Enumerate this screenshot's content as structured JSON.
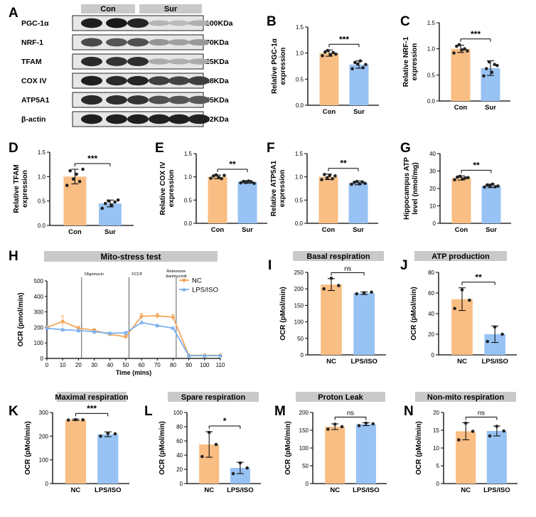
{
  "colors": {
    "con": "#f9be83",
    "sur": "#97c2f3",
    "nc_line": "#f3a85c",
    "lps_line": "#7db1ee",
    "header": "#c9c9c9",
    "blot_bg": "#e6e6e6"
  },
  "panel_a": {
    "letter": "A",
    "groups": [
      "Con",
      "Sur"
    ],
    "proteins": [
      "PGC-1α",
      "NRF-1",
      "TFAM",
      "COX IV",
      "ATP5A1",
      "β-actin"
    ],
    "sizes": [
      "100KDa",
      "70KDa",
      "25KDa",
      "18KDa",
      "55KDa",
      "42KDa"
    ],
    "band_intensity": [
      [
        0.95,
        0.98,
        0.92,
        0.25,
        0.22,
        0.28
      ],
      [
        0.75,
        0.7,
        0.72,
        0.4,
        0.35,
        0.38
      ],
      [
        0.9,
        0.85,
        0.88,
        0.3,
        0.28,
        0.3
      ],
      [
        0.95,
        0.9,
        0.92,
        0.8,
        0.78,
        0.8
      ],
      [
        0.9,
        0.88,
        0.85,
        0.72,
        0.7,
        0.68
      ],
      [
        0.95,
        0.95,
        0.95,
        0.94,
        0.95,
        0.94
      ]
    ]
  },
  "chart_data": [
    {
      "id": "B",
      "letter": "B",
      "type": "bar",
      "categories": [
        "Con",
        "Sur"
      ],
      "values": [
        1.0,
        0.78
      ],
      "errors": [
        0.06,
        0.07
      ],
      "points": [
        [
          0.95,
          1.02,
          1.05,
          0.97,
          1.01,
          0.98
        ],
        [
          0.7,
          0.82,
          0.79,
          0.85,
          0.72,
          0.78
        ]
      ],
      "ylabel": "Relative PGC-1α expression",
      "ylim": [
        0,
        1.5
      ],
      "yticks": [
        "0.0",
        "0.5",
        "1.0",
        "1.5"
      ],
      "sig": "***"
    },
    {
      "id": "C",
      "letter": "C",
      "type": "bar",
      "categories": [
        "Con",
        "Sur"
      ],
      "values": [
        1.0,
        0.63
      ],
      "errors": [
        0.07,
        0.14
      ],
      "points": [
        [
          0.92,
          1.05,
          1.08,
          0.98,
          1.0,
          0.96
        ],
        [
          0.48,
          0.62,
          0.75,
          0.55,
          0.7,
          0.68
        ]
      ],
      "ylabel": "Relative NRF-1 expression",
      "ylim": [
        0,
        1.5
      ],
      "yticks": [
        "0.0",
        "0.5",
        "1.0",
        "1.5"
      ],
      "sig": "***"
    },
    {
      "id": "D",
      "letter": "D",
      "type": "bar",
      "categories": [
        "Con",
        "Sur"
      ],
      "values": [
        1.0,
        0.45
      ],
      "errors": [
        0.15,
        0.07
      ],
      "points": [
        [
          0.82,
          1.12,
          0.95,
          1.05,
          0.9,
          1.15
        ],
        [
          0.35,
          0.45,
          0.5,
          0.42,
          0.48,
          0.52
        ]
      ],
      "ylabel": "Relative TFAM expression",
      "ylim": [
        0,
        1.5
      ],
      "yticks": [
        "0.0",
        "0.5",
        "1.0",
        "1.5"
      ],
      "sig": "***"
    },
    {
      "id": "E",
      "letter": "E",
      "type": "bar",
      "categories": [
        "Con",
        "Sur"
      ],
      "values": [
        1.0,
        0.89
      ],
      "errors": [
        0.04,
        0.03
      ],
      "points": [
        [
          0.97,
          1.02,
          1.04,
          0.99,
          0.96,
          1.03
        ],
        [
          0.87,
          0.9,
          0.88,
          0.91,
          0.89,
          0.86
        ]
      ],
      "ylabel": "Relative COX IV expression",
      "ylim": [
        0,
        1.5
      ],
      "yticks": [
        "0.0",
        "0.5",
        "1.0",
        "1.5"
      ],
      "sig": "**"
    },
    {
      "id": "F",
      "letter": "F",
      "type": "bar",
      "categories": [
        "Con",
        "Sur"
      ],
      "values": [
        1.0,
        0.87
      ],
      "errors": [
        0.06,
        0.04
      ],
      "points": [
        [
          0.94,
          1.05,
          0.98,
          1.03,
          0.96,
          1.02
        ],
        [
          0.84,
          0.88,
          0.9,
          0.85,
          0.89,
          0.86
        ]
      ],
      "ylabel": "Relative ATP5A1 expression",
      "ylim": [
        0,
        1.5
      ],
      "yticks": [
        "0.0",
        "0.5",
        "1.0",
        "1.5"
      ],
      "sig": "**"
    },
    {
      "id": "G",
      "letter": "G",
      "type": "bar",
      "categories": [
        "Con",
        "Sur"
      ],
      "values": [
        26,
        21.5
      ],
      "errors": [
        1.2,
        1.0
      ],
      "points": [
        [
          25,
          26.5,
          27,
          25.5,
          26,
          26.2
        ],
        [
          20.8,
          22,
          21.5,
          22.5,
          21,
          21.4
        ]
      ],
      "ylabel": "Hippocampus ATP level (nmol/mg)",
      "ylim": [
        0,
        40
      ],
      "yticks": [
        "0",
        "10",
        "20",
        "30",
        "40"
      ],
      "sig": "**"
    },
    {
      "id": "H",
      "letter": "H",
      "type": "line",
      "title": "Mito-stress test",
      "xlabel": "Time (mins)",
      "ylabel": "OCR (pmol/min)",
      "xlim": [
        0,
        110
      ],
      "ylim": [
        0,
        500
      ],
      "xticks": [
        "0",
        "10",
        "20",
        "30",
        "40",
        "50",
        "60",
        "70",
        "80",
        "90",
        "100",
        "110"
      ],
      "yticks": [
        "0",
        "100",
        "200",
        "300",
        "400",
        "500"
      ],
      "x": [
        0,
        10,
        20,
        30,
        40,
        50,
        60,
        70,
        80,
        90,
        100,
        110
      ],
      "series": [
        {
          "name": "NC",
          "values": [
            200,
            238,
            195,
            182,
            155,
            140,
            272,
            275,
            266,
            20,
            20,
            20
          ],
          "errors": [
            10,
            35,
            12,
            10,
            8,
            8,
            18,
            15,
            16,
            3,
            3,
            3
          ]
        },
        {
          "name": "LPS/ISO",
          "values": [
            195,
            185,
            180,
            172,
            162,
            165,
            232,
            212,
            195,
            18,
            18,
            18
          ],
          "errors": [
            8,
            8,
            8,
            8,
            8,
            8,
            8,
            8,
            8,
            3,
            3,
            3
          ]
        }
      ],
      "annotations": [
        {
          "label": "Oligomycin",
          "x": 22
        },
        {
          "label": "FCCP",
          "x": 52
        },
        {
          "label": "Reteonone &antmycinA",
          "x": 82
        }
      ]
    },
    {
      "id": "I",
      "letter": "I",
      "type": "bar",
      "title": "Basal respiration",
      "categories": [
        "NC",
        "LPS/ISO"
      ],
      "values": [
        213,
        187
      ],
      "errors": [
        18,
        4
      ],
      "points": [
        [
          200,
          232,
          210
        ],
        [
          185,
          188,
          190
        ]
      ],
      "ylabel": "OCR (pMol/min)",
      "ylim": [
        0,
        250
      ],
      "yticks": [
        "0",
        "50",
        "100",
        "150",
        "200",
        "250"
      ],
      "sig": "ns"
    },
    {
      "id": "J",
      "letter": "J",
      "type": "bar",
      "title": "ATP production",
      "categories": [
        "NC",
        "LPS/ISO"
      ],
      "values": [
        54,
        20
      ],
      "errors": [
        11,
        8
      ],
      "points": [
        [
          45,
          63,
          53
        ],
        [
          13,
          27,
          20
        ]
      ],
      "ylabel": "OCR (pMol/min)",
      "ylim": [
        0,
        80
      ],
      "yticks": [
        "0",
        "20",
        "40",
        "60",
        "80"
      ],
      "sig": "**"
    },
    {
      "id": "K",
      "letter": "K",
      "type": "bar",
      "title": "Maximal respiration",
      "categories": [
        "NC",
        "LPS/ISO"
      ],
      "values": [
        269,
        208
      ],
      "errors": [
        3,
        10
      ],
      "points": [
        [
          268,
          270,
          269
        ],
        [
          200,
          212,
          210
        ]
      ],
      "ylabel": "OCR (pMol/min)",
      "ylim": [
        0,
        300
      ],
      "yticks": [
        "0",
        "100",
        "200",
        "300"
      ],
      "sig": "***"
    },
    {
      "id": "L",
      "letter": "L",
      "type": "bar",
      "title": "Spare respiration",
      "categories": [
        "NC",
        "LPS/ISO"
      ],
      "values": [
        55,
        22
      ],
      "errors": [
        18,
        8
      ],
      "points": [
        [
          38,
          72,
          55
        ],
        [
          14,
          29,
          22
        ]
      ],
      "ylabel": "OCR (pMol/min)",
      "ylim": [
        0,
        100
      ],
      "yticks": [
        "0",
        "20",
        "40",
        "60",
        "80",
        "100"
      ],
      "sig": "*"
    },
    {
      "id": "M",
      "letter": "M",
      "type": "bar",
      "title": "Proton Leak",
      "categories": [
        "NC",
        "LPS/ISO"
      ],
      "values": [
        160,
        167
      ],
      "errors": [
        8,
        4
      ],
      "points": [
        [
          153,
          167,
          160
        ],
        [
          163,
          170,
          168
        ]
      ],
      "ylabel": "OCR (pMol/min)",
      "ylim": [
        0,
        200
      ],
      "yticks": [
        "0",
        "50",
        "100",
        "150",
        "200"
      ],
      "sig": "ns"
    },
    {
      "id": "N",
      "letter": "N",
      "type": "bar",
      "title": "Non-mito respiration",
      "categories": [
        "NC",
        "LPS/ISO"
      ],
      "values": [
        14.7,
        14.8
      ],
      "errors": [
        2.4,
        1.4
      ],
      "points": [
        [
          12.3,
          17,
          14.7
        ],
        [
          13.4,
          16.1,
          14.8
        ]
      ],
      "ylabel": "OCR (pMol/min)",
      "ylim": [
        0,
        20
      ],
      "yticks": [
        "0",
        "5",
        "10",
        "15",
        "20"
      ],
      "sig": "ns"
    }
  ]
}
